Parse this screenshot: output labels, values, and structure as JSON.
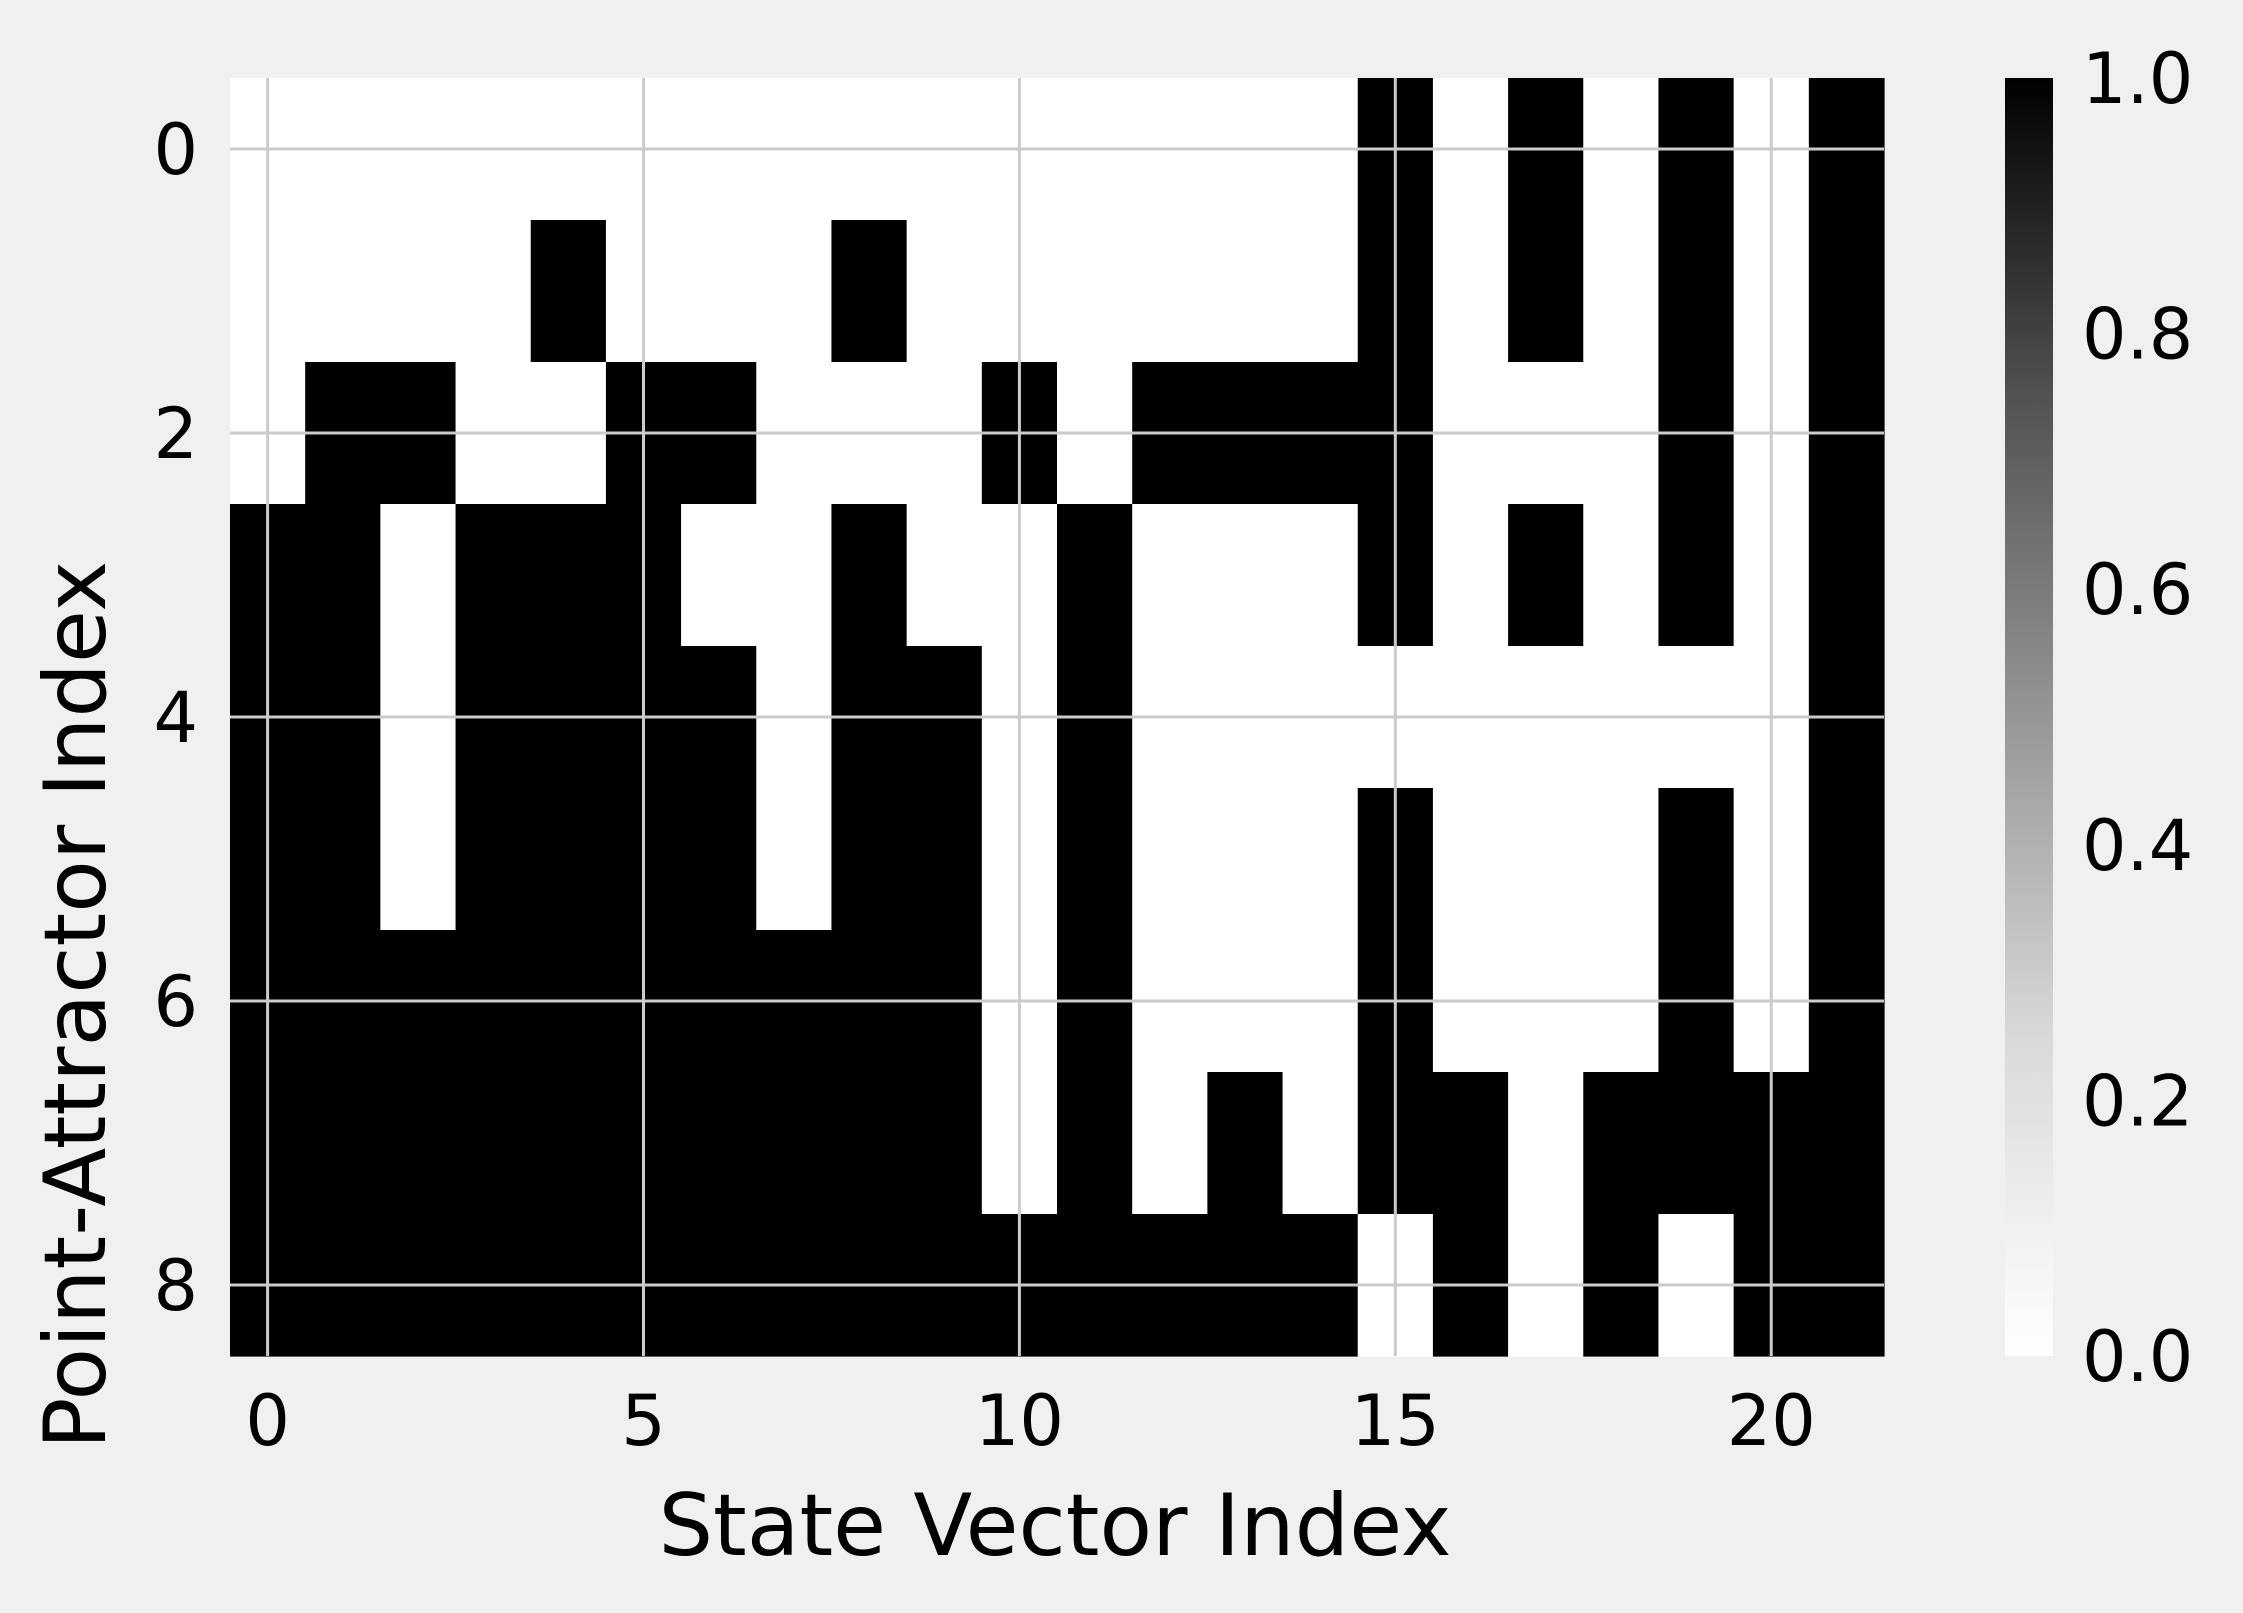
{
  "chart_data": {
    "type": "heatmap",
    "title": "",
    "xlabel": "State Vector Index",
    "ylabel": "Point-Attractor Index",
    "x_ticks": [
      0,
      5,
      10,
      15,
      20
    ],
    "y_ticks": [
      0,
      2,
      4,
      6,
      8
    ],
    "x_tick_labels": [
      "0",
      "5",
      "10",
      "15",
      "20"
    ],
    "y_tick_labels": [
      "0",
      "2",
      "4",
      "6",
      "8"
    ],
    "n_cols": 22,
    "n_rows": 9,
    "xlim": [
      -0.5,
      21.5
    ],
    "ylim": [
      8.5,
      -0.5
    ],
    "grid": true,
    "colormap": "Greys",
    "colors": {
      "background": "#f0f0f0",
      "grid": "#cbcbcb",
      "low": "#ffffff",
      "high": "#000000"
    },
    "colorbar": {
      "range": [
        0.0,
        1.0
      ],
      "ticks": [
        0.0,
        0.2,
        0.4,
        0.6,
        0.8,
        1.0
      ],
      "tick_labels": [
        "0.0",
        "0.2",
        "0.4",
        "0.6",
        "0.8",
        "1.0"
      ]
    },
    "values": [
      [
        0,
        0,
        0,
        0,
        0,
        0,
        0,
        0,
        0,
        0,
        0,
        0,
        0,
        0,
        0,
        1,
        0,
        1,
        0,
        1,
        0,
        1
      ],
      [
        0,
        0,
        0,
        0,
        1,
        0,
        0,
        0,
        1,
        0,
        0,
        0,
        0,
        0,
        0,
        1,
        0,
        1,
        0,
        1,
        0,
        1
      ],
      [
        0,
        1,
        1,
        0,
        0,
        1,
        1,
        0,
        0,
        0,
        1,
        0,
        1,
        1,
        1,
        1,
        0,
        0,
        0,
        1,
        0,
        1
      ],
      [
        1,
        1,
        0,
        1,
        1,
        1,
        0,
        0,
        1,
        0,
        0,
        1,
        0,
        0,
        0,
        1,
        0,
        1,
        0,
        1,
        0,
        1
      ],
      [
        1,
        1,
        0,
        1,
        1,
        1,
        1,
        0,
        1,
        1,
        0,
        1,
        0,
        0,
        0,
        0,
        0,
        0,
        0,
        0,
        0,
        1
      ],
      [
        1,
        1,
        0,
        1,
        1,
        1,
        1,
        0,
        1,
        1,
        0,
        1,
        0,
        0,
        0,
        1,
        0,
        0,
        0,
        1,
        0,
        1
      ],
      [
        1,
        1,
        1,
        1,
        1,
        1,
        1,
        1,
        1,
        1,
        0,
        1,
        0,
        0,
        0,
        1,
        0,
        0,
        0,
        1,
        0,
        1
      ],
      [
        1,
        1,
        1,
        1,
        1,
        1,
        1,
        1,
        1,
        1,
        0,
        1,
        0,
        1,
        0,
        1,
        1,
        0,
        1,
        1,
        1,
        1
      ],
      [
        1,
        1,
        1,
        1,
        1,
        1,
        1,
        1,
        1,
        1,
        1,
        1,
        1,
        1,
        1,
        0,
        1,
        0,
        1,
        0,
        1,
        1
      ]
    ]
  }
}
